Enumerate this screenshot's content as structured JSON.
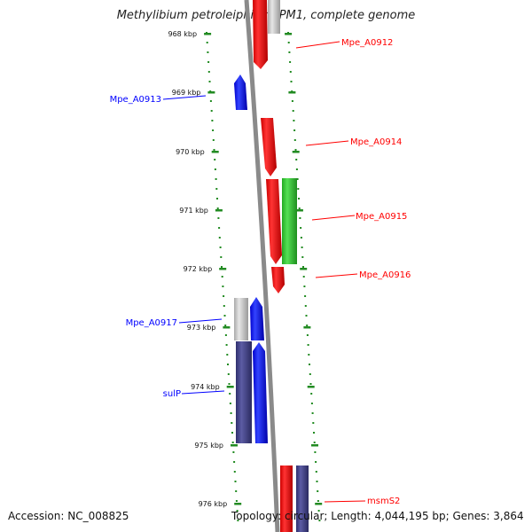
{
  "title": "Methylibium petroleiphilum PM1, complete genome",
  "accession": "Accession: NC_008825",
  "topology": "Topology: circular; Length: 4,044,195 bp; Genes: 3,864",
  "colors": {
    "forward_strand": "#ff0000",
    "reverse_strand": "#0000ff",
    "rna": "#33cc33",
    "pseudo": "#c0c0c0",
    "operon": "#4a4a8a",
    "axis": "#808080",
    "ticks": "#228b22"
  },
  "ruler": [
    {
      "label": "968 kbp"
    },
    {
      "label": "969 kbp"
    },
    {
      "label": "970 kbp"
    },
    {
      "label": "971 kbp"
    },
    {
      "label": "972 kbp"
    },
    {
      "label": "973 kbp"
    },
    {
      "label": "974 kbp"
    },
    {
      "label": "975 kbp"
    },
    {
      "label": "976 kbp"
    }
  ],
  "gene_labels": [
    {
      "label": "Mpe_A0912",
      "strand": "forward"
    },
    {
      "label": "Mpe_A0913",
      "strand": "reverse"
    },
    {
      "label": "Mpe_A0914",
      "strand": "forward"
    },
    {
      "label": "Mpe_A0915",
      "strand": "forward"
    },
    {
      "label": "Mpe_A0916",
      "strand": "forward"
    },
    {
      "label": "Mpe_A0917",
      "strand": "reverse"
    },
    {
      "label": "sulP",
      "strand": "reverse"
    },
    {
      "label": "msmS2",
      "strand": "forward"
    }
  ]
}
